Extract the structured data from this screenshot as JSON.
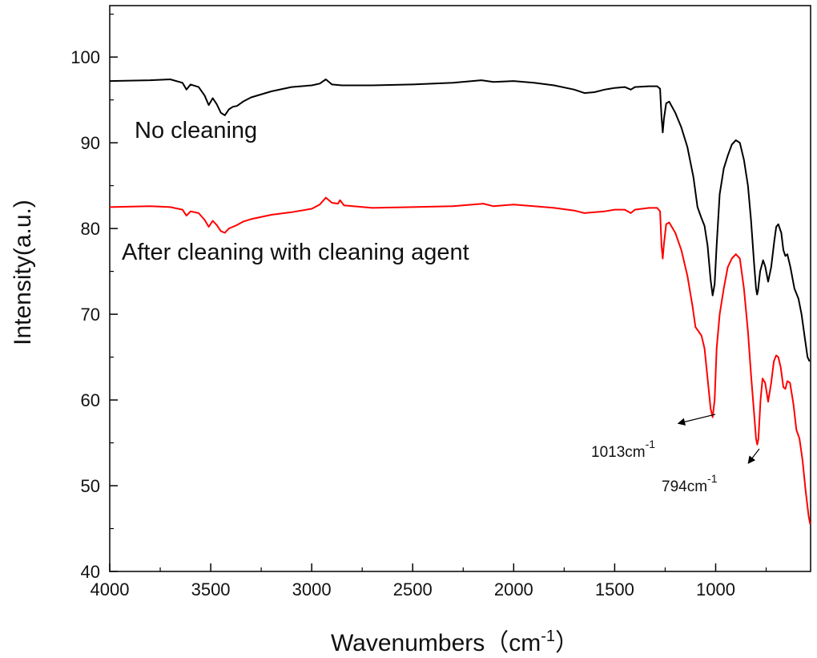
{
  "chart_data": {
    "type": "line",
    "xlabel": "Wavenumbers（cm",
    "xlabel_sup": "-1",
    "xlabel_close": "）",
    "ylabel": "Intensity(a.u.)",
    "xlim": [
      4000,
      530
    ],
    "ylim": [
      40,
      106
    ],
    "x_reversed": true,
    "grid": false,
    "x_ticks": [
      4000,
      3500,
      3000,
      2500,
      2000,
      1500,
      1000
    ],
    "y_ticks": [
      40,
      50,
      60,
      70,
      80,
      90,
      100
    ],
    "series": [
      {
        "name": "No cleaning",
        "color": "#000000",
        "points": [
          [
            4000,
            97.2
          ],
          [
            3800,
            97.3
          ],
          [
            3700,
            97.4
          ],
          [
            3640,
            97.0
          ],
          [
            3620,
            96.2
          ],
          [
            3600,
            96.8
          ],
          [
            3560,
            96.5
          ],
          [
            3530,
            95.5
          ],
          [
            3510,
            94.4
          ],
          [
            3490,
            95.2
          ],
          [
            3470,
            94.5
          ],
          [
            3450,
            93.5
          ],
          [
            3430,
            93.2
          ],
          [
            3410,
            93.9
          ],
          [
            3390,
            94.2
          ],
          [
            3370,
            94.3
          ],
          [
            3340,
            94.8
          ],
          [
            3300,
            95.3
          ],
          [
            3200,
            96.0
          ],
          [
            3100,
            96.5
          ],
          [
            3000,
            96.7
          ],
          [
            2960,
            96.9
          ],
          [
            2930,
            97.4
          ],
          [
            2900,
            96.8
          ],
          [
            2850,
            96.7
          ],
          [
            2700,
            96.7
          ],
          [
            2500,
            96.8
          ],
          [
            2300,
            97.0
          ],
          [
            2160,
            97.3
          ],
          [
            2100,
            97.1
          ],
          [
            2000,
            97.2
          ],
          [
            1900,
            97.0
          ],
          [
            1800,
            96.7
          ],
          [
            1700,
            96.2
          ],
          [
            1650,
            95.8
          ],
          [
            1600,
            95.9
          ],
          [
            1550,
            96.2
          ],
          [
            1500,
            96.4
          ],
          [
            1450,
            96.5
          ],
          [
            1420,
            96.2
          ],
          [
            1400,
            96.5
          ],
          [
            1330,
            96.6
          ],
          [
            1290,
            96.6
          ],
          [
            1275,
            96.3
          ],
          [
            1268,
            93.0
          ],
          [
            1262,
            91.2
          ],
          [
            1256,
            92.8
          ],
          [
            1245,
            94.6
          ],
          [
            1230,
            94.8
          ],
          [
            1200,
            93.5
          ],
          [
            1170,
            91.8
          ],
          [
            1140,
            89.5
          ],
          [
            1110,
            86.0
          ],
          [
            1090,
            82.5
          ],
          [
            1070,
            81.2
          ],
          [
            1055,
            80.3
          ],
          [
            1040,
            78.0
          ],
          [
            1025,
            74.0
          ],
          [
            1015,
            72.2
          ],
          [
            1005,
            73.5
          ],
          [
            995,
            78.0
          ],
          [
            980,
            84.0
          ],
          [
            960,
            87.0
          ],
          [
            940,
            88.5
          ],
          [
            920,
            89.8
          ],
          [
            900,
            90.3
          ],
          [
            880,
            90.0
          ],
          [
            860,
            88.0
          ],
          [
            840,
            85.0
          ],
          [
            825,
            81.0
          ],
          [
            810,
            76.0
          ],
          [
            800,
            73.0
          ],
          [
            795,
            72.3
          ],
          [
            790,
            72.8
          ],
          [
            780,
            75.0
          ],
          [
            765,
            76.3
          ],
          [
            755,
            75.6
          ],
          [
            740,
            73.8
          ],
          [
            725,
            75.5
          ],
          [
            710,
            78.5
          ],
          [
            700,
            80.2
          ],
          [
            690,
            80.5
          ],
          [
            675,
            79.5
          ],
          [
            665,
            77.5
          ],
          [
            655,
            76.8
          ],
          [
            645,
            77.0
          ],
          [
            630,
            75.5
          ],
          [
            610,
            73.0
          ],
          [
            590,
            71.8
          ],
          [
            575,
            70.0
          ],
          [
            560,
            67.5
          ],
          [
            545,
            65.0
          ],
          [
            535,
            64.5
          ]
        ]
      },
      {
        "name": "After cleaning with cleaning agent",
        "color": "#ff0000",
        "points": [
          [
            4000,
            82.5
          ],
          [
            3800,
            82.6
          ],
          [
            3700,
            82.5
          ],
          [
            3640,
            82.2
          ],
          [
            3620,
            81.5
          ],
          [
            3600,
            82.0
          ],
          [
            3560,
            81.8
          ],
          [
            3530,
            81.0
          ],
          [
            3510,
            80.2
          ],
          [
            3490,
            80.9
          ],
          [
            3470,
            80.4
          ],
          [
            3450,
            79.7
          ],
          [
            3430,
            79.5
          ],
          [
            3410,
            80.0
          ],
          [
            3390,
            80.2
          ],
          [
            3370,
            80.4
          ],
          [
            3340,
            80.8
          ],
          [
            3300,
            81.1
          ],
          [
            3200,
            81.6
          ],
          [
            3100,
            81.9
          ],
          [
            3000,
            82.3
          ],
          [
            2960,
            82.8
          ],
          [
            2930,
            83.6
          ],
          [
            2900,
            83.0
          ],
          [
            2870,
            82.9
          ],
          [
            2860,
            83.3
          ],
          [
            2840,
            82.7
          ],
          [
            2700,
            82.4
          ],
          [
            2500,
            82.5
          ],
          [
            2300,
            82.6
          ],
          [
            2150,
            82.9
          ],
          [
            2100,
            82.6
          ],
          [
            2000,
            82.8
          ],
          [
            1900,
            82.6
          ],
          [
            1800,
            82.4
          ],
          [
            1700,
            82.1
          ],
          [
            1650,
            81.8
          ],
          [
            1600,
            81.9
          ],
          [
            1550,
            82.0
          ],
          [
            1500,
            82.2
          ],
          [
            1450,
            82.2
          ],
          [
            1420,
            81.8
          ],
          [
            1400,
            82.2
          ],
          [
            1330,
            82.4
          ],
          [
            1290,
            82.4
          ],
          [
            1275,
            82.0
          ],
          [
            1268,
            78.0
          ],
          [
            1262,
            76.5
          ],
          [
            1256,
            78.2
          ],
          [
            1245,
            80.5
          ],
          [
            1230,
            80.7
          ],
          [
            1200,
            79.5
          ],
          [
            1170,
            77.5
          ],
          [
            1140,
            74.5
          ],
          [
            1115,
            71.0
          ],
          [
            1100,
            68.5
          ],
          [
            1085,
            68.0
          ],
          [
            1070,
            67.5
          ],
          [
            1055,
            66.0
          ],
          [
            1040,
            62.5
          ],
          [
            1025,
            59.0
          ],
          [
            1015,
            58.0
          ],
          [
            1005,
            60.0
          ],
          [
            995,
            66.0
          ],
          [
            980,
            70.0
          ],
          [
            960,
            73.0
          ],
          [
            940,
            75.5
          ],
          [
            920,
            76.5
          ],
          [
            900,
            77.0
          ],
          [
            880,
            76.5
          ],
          [
            860,
            73.0
          ],
          [
            840,
            68.0
          ],
          [
            825,
            63.0
          ],
          [
            810,
            58.5
          ],
          [
            800,
            55.5
          ],
          [
            794,
            54.8
          ],
          [
            788,
            55.5
          ],
          [
            778,
            60.0
          ],
          [
            768,
            62.5
          ],
          [
            755,
            62.0
          ],
          [
            740,
            59.8
          ],
          [
            725,
            62.0
          ],
          [
            712,
            64.5
          ],
          [
            700,
            65.2
          ],
          [
            690,
            65.0
          ],
          [
            678,
            63.8
          ],
          [
            665,
            61.5
          ],
          [
            655,
            61.3
          ],
          [
            645,
            62.2
          ],
          [
            632,
            62.0
          ],
          [
            615,
            59.5
          ],
          [
            600,
            56.5
          ],
          [
            585,
            55.5
          ],
          [
            570,
            53.0
          ],
          [
            555,
            49.5
          ],
          [
            540,
            46.5
          ],
          [
            532,
            45.5
          ]
        ]
      }
    ],
    "annotations": [
      {
        "text": "No cleaning",
        "series": 0
      },
      {
        "text": "After cleaning with cleaning agent",
        "series": 1
      },
      {
        "text": "1013cm",
        "sup": "-1",
        "x": 1013,
        "y": 58.0
      },
      {
        "text": "794cm",
        "sup": "-1",
        "x": 794,
        "y": 54.8
      }
    ]
  }
}
